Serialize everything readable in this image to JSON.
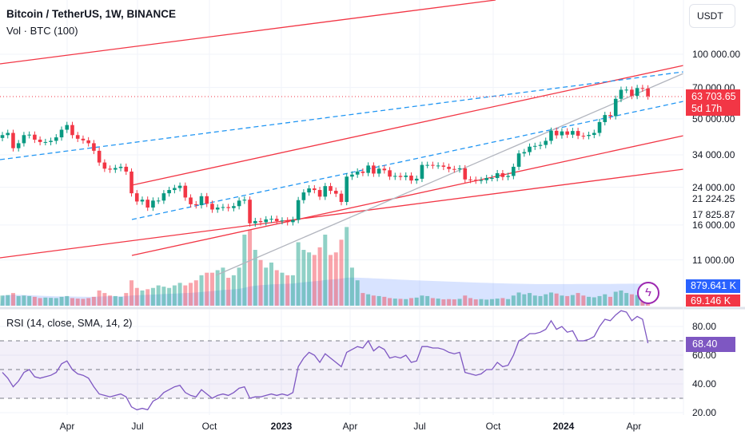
{
  "header": {
    "title": "Bitcoin / TetherUS, 1W, BINANCE",
    "volume_indicator": "Vol · BTC (100)",
    "rsi_indicator": "RSI (14, close, SMA, 14, 2)",
    "currency": "USDT"
  },
  "price_axis": {
    "ticks": [
      "100 000.00",
      "70 000.00",
      "50 000.00",
      "34 000.00",
      "24 000.00",
      "21 224.25",
      "17 825.87",
      "16 000.00",
      "11 000.00"
    ],
    "tick_values": [
      100000,
      70000,
      50000,
      34000,
      24000,
      21224.25,
      17825.87,
      16000,
      11000
    ],
    "scale": "log"
  },
  "current_price": {
    "value": "63 703.65",
    "countdown": "5d 17h",
    "color": "#f23645"
  },
  "volume_labels": {
    "ma": "879.641 K",
    "current": "69.146 K",
    "ma_color": "#2962ff",
    "current_color": "#f23645"
  },
  "rsi_axis": {
    "ticks": [
      "80.00",
      "60.00",
      "40.00",
      "20.00"
    ],
    "tick_values": [
      80,
      60,
      40,
      20
    ],
    "current": "68.40",
    "bands": [
      70,
      50,
      30
    ],
    "color": "#7e57c2"
  },
  "time_axis": {
    "labels": [
      {
        "text": "Apr",
        "bold": false
      },
      {
        "text": "Jul",
        "bold": false
      },
      {
        "text": "Oct",
        "bold": false
      },
      {
        "text": "2023",
        "bold": true
      },
      {
        "text": "Apr",
        "bold": false
      },
      {
        "text": "Jul",
        "bold": false
      },
      {
        "text": "Oct",
        "bold": false
      },
      {
        "text": "2024",
        "bold": true
      },
      {
        "text": "Apr",
        "bold": false
      }
    ]
  },
  "icons": {
    "alert": "lightning-icon"
  },
  "colors": {
    "up": "#089981",
    "down": "#f23645",
    "trendline": "#f23645",
    "channel": "#2196f3"
  },
  "chart_data": {
    "type": "candlestick",
    "interval": "1W",
    "closes": [
      42000,
      43000,
      36500,
      38500,
      42000,
      42200,
      40000,
      39000,
      39000,
      39500,
      41000,
      44500,
      46800,
      42000,
      40400,
      39700,
      38500,
      35500,
      31300,
      29300,
      29000,
      29500,
      29900,
      28400,
      22500,
      20600,
      21000,
      19300,
      20800,
      20800,
      22500,
      23300,
      23800,
      24400,
      21500,
      20000,
      19800,
      21800,
      20100,
      18900,
      19300,
      19400,
      19200,
      19600,
      20800,
      21000,
      16300,
      16700,
      16500,
      17000,
      17100,
      16700,
      16800,
      16500,
      16900,
      20900,
      22700,
      23700,
      23300,
      21700,
      24300,
      23100,
      22400,
      20500,
      26900,
      27500,
      28400,
      28000,
      30300,
      27800,
      29300,
      28800,
      26900,
      27100,
      26800,
      27200,
      25800,
      26300,
      30500,
      30500,
      30300,
      30300,
      29900,
      29200,
      29100,
      29400,
      26100,
      26000,
      25800,
      25900,
      26500,
      26500,
      27900,
      26800,
      27100,
      29900,
      34500,
      35000,
      37100,
      37400,
      37800,
      39500,
      44000,
      41900,
      43700,
      42200,
      43900,
      41700,
      41600,
      42100,
      43000,
      48300,
      52100,
      51500,
      62000,
      68300,
      68400,
      64000,
      69600,
      69300,
      63703.65
    ],
    "volumes_k": [
      400,
      420,
      500,
      380,
      400,
      380,
      350,
      300,
      320,
      310,
      300,
      350,
      380,
      300,
      280,
      270,
      300,
      350,
      600,
      500,
      400,
      380,
      350,
      500,
      1000,
      700,
      600,
      650,
      700,
      800,
      750,
      700,
      800,
      900,
      800,
      900,
      1000,
      1200,
      1300,
      1300,
      1400,
      1500,
      1100,
      1200,
      1500,
      2800,
      3000,
      2200,
      1800,
      1500,
      1700,
      1400,
      1300,
      1200,
      1200,
      2500,
      2200,
      2100,
      2000,
      2300,
      2800,
      2000,
      2100,
      2600,
      3100,
      1500,
      1000,
      500,
      450,
      400,
      380,
      350,
      300,
      280,
      270,
      260,
      300,
      320,
      400,
      380,
      300,
      280,
      250,
      260,
      250,
      270,
      400,
      300,
      250,
      260,
      240,
      260,
      280,
      300,
      260,
      400,
      520,
      450,
      500,
      400,
      380,
      450,
      520,
      480,
      400,
      380,
      420,
      500,
      400,
      350,
      330,
      380,
      450,
      350,
      550,
      600,
      500,
      450,
      420,
      480,
      69.146
    ],
    "rsi": [
      48,
      44,
      38,
      42,
      48,
      50,
      45,
      44,
      45,
      46,
      48,
      54,
      56,
      50,
      47,
      46,
      44,
      38,
      33,
      32,
      31,
      32,
      33,
      31,
      24,
      22,
      23,
      22,
      28,
      30,
      34,
      36,
      38,
      39,
      34,
      32,
      31,
      36,
      33,
      30,
      32,
      33,
      32,
      34,
      37,
      38,
      30,
      31,
      31,
      32,
      33,
      32,
      33,
      32,
      34,
      52,
      58,
      62,
      60,
      55,
      61,
      58,
      55,
      52,
      62,
      64,
      66,
      65,
      70,
      63,
      66,
      64,
      58,
      59,
      58,
      60,
      55,
      56,
      66,
      66,
      65,
      65,
      64,
      62,
      61,
      62,
      48,
      47,
      46,
      47,
      50,
      50,
      55,
      52,
      53,
      60,
      70,
      72,
      75,
      75,
      76,
      78,
      84,
      78,
      80,
      76,
      77,
      70,
      70,
      71,
      73,
      80,
      85,
      84,
      88,
      91,
      90,
      84,
      87,
      85,
      68.4
    ]
  }
}
